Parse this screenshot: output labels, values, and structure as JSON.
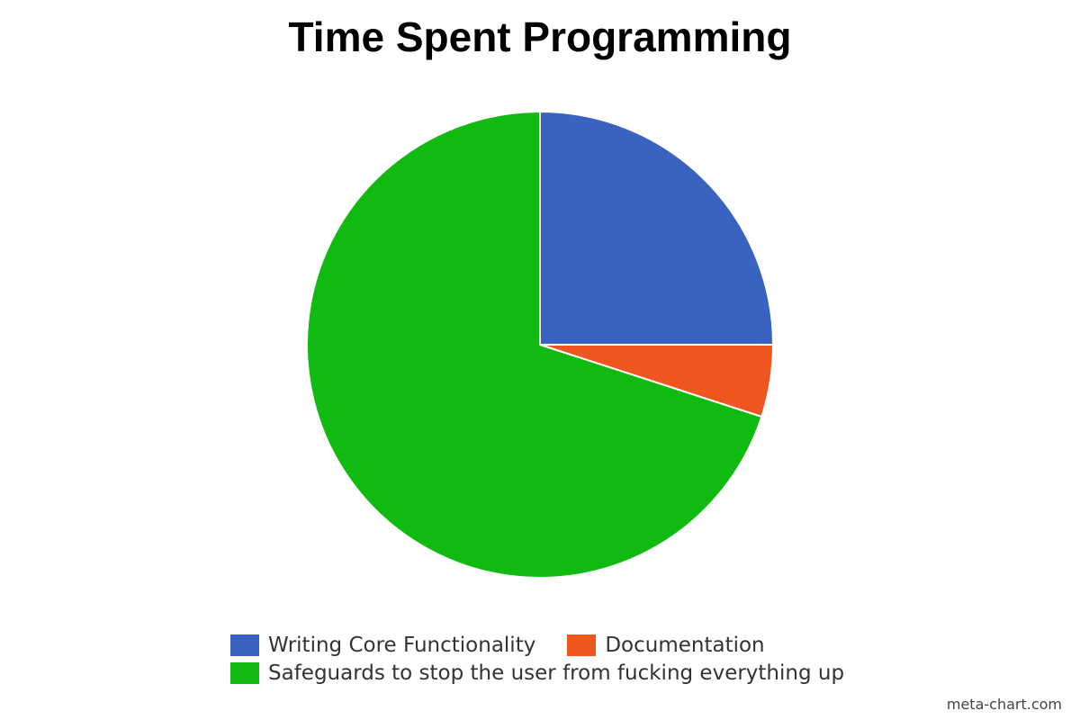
{
  "chart_data": {
    "type": "pie",
    "title": "Time Spent Programming",
    "series": [
      {
        "name": "Writing Core Functionality",
        "value": 25,
        "color": "#3a62c1"
      },
      {
        "name": "Documentation",
        "value": 5,
        "color": "#ef561f"
      },
      {
        "name": "Safeguards to stop the user from fucking everything up",
        "value": 70,
        "color": "#10ba10"
      }
    ],
    "start_angle": "12 o'clock, clockwise",
    "legend_position": "bottom"
  },
  "watermark": "meta-chart.com"
}
